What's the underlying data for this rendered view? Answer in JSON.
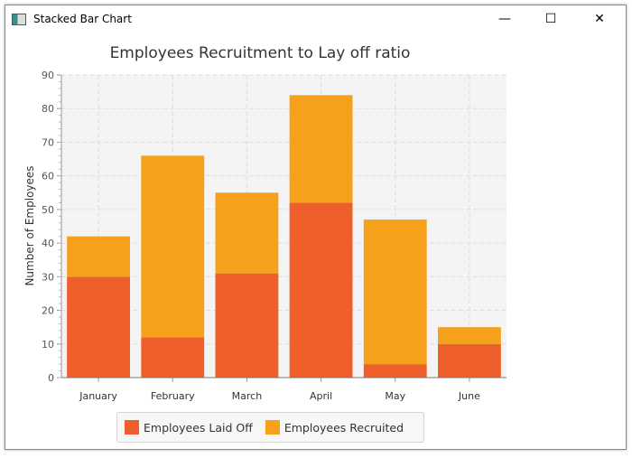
{
  "window": {
    "title": "Stacked Bar Chart",
    "minimize": "—",
    "maximize": "☐",
    "close": "✕"
  },
  "chart_data": {
    "type": "bar",
    "stacked": true,
    "title": "Employees Recruitment to Lay off ratio",
    "xlabel": "",
    "ylabel": "Number of Employees",
    "categories": [
      "January",
      "February",
      "March",
      "April",
      "May",
      "June"
    ],
    "ylim": [
      0,
      90
    ],
    "yticks": [
      0,
      10,
      20,
      30,
      40,
      50,
      60,
      70,
      80,
      90
    ],
    "grid": true,
    "legend_position": "bottom",
    "series": [
      {
        "name": "Employees Laid Off",
        "color": "#ee5f2b",
        "values": [
          30,
          12,
          31,
          52,
          4,
          10
        ]
      },
      {
        "name": "Employees Recruited",
        "color": "#f5a11c",
        "values": [
          12,
          54,
          24,
          32,
          43,
          5
        ]
      }
    ]
  }
}
